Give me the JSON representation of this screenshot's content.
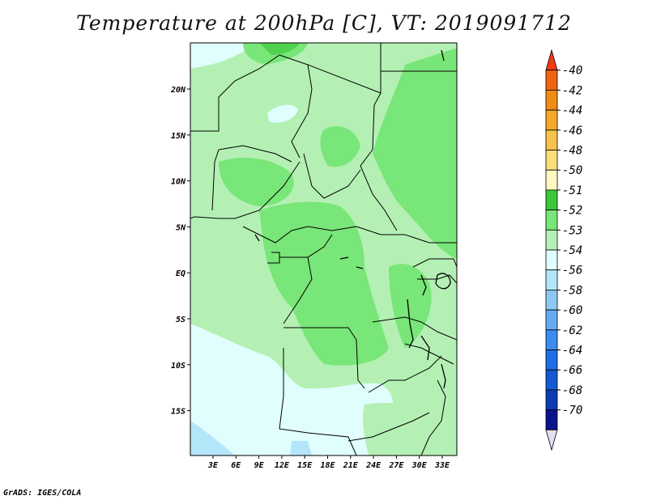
{
  "title": "Temperature at 200hPa [C], VT: 2019091712",
  "credit": "GrADS: IGES/COLA",
  "map": {
    "lon_labels": [
      "3E",
      "6E",
      "9E",
      "12E",
      "15E",
      "18E",
      "21E",
      "24E",
      "27E",
      "30E",
      "33E"
    ],
    "lat_labels": [
      "20N",
      "15N",
      "10N",
      "5N",
      "EQ",
      "5S",
      "10S",
      "15S"
    ]
  },
  "colorbar": {
    "labels": [
      "-40",
      "-42",
      "-44",
      "-46",
      "-48",
      "-50",
      "-51",
      "-52",
      "-53",
      "-54",
      "-56",
      "-58",
      "-60",
      "-62",
      "-64",
      "-66",
      "-68",
      "-70"
    ],
    "colors": [
      "#f03c14",
      "#f06414",
      "#f08c14",
      "#f5a82a",
      "#f7c24a",
      "#fae07c",
      "#fff8c0",
      "#3cc83c",
      "#78e678",
      "#b4f0b4",
      "#e0fefe",
      "#b4e6fa",
      "#8cc8f0",
      "#64aaf0",
      "#3c8cf0",
      "#1e6ee6",
      "#145ad2",
      "#0a3cb4",
      "#0a148c",
      "#e0e0f0"
    ]
  },
  "legend_colors": {
    "dark_green": "#50d250",
    "green": "#78e678",
    "light_green": "#b4f0b4",
    "pale_cyan": "#e0fefe",
    "light_blue": "#b4e6fa"
  }
}
